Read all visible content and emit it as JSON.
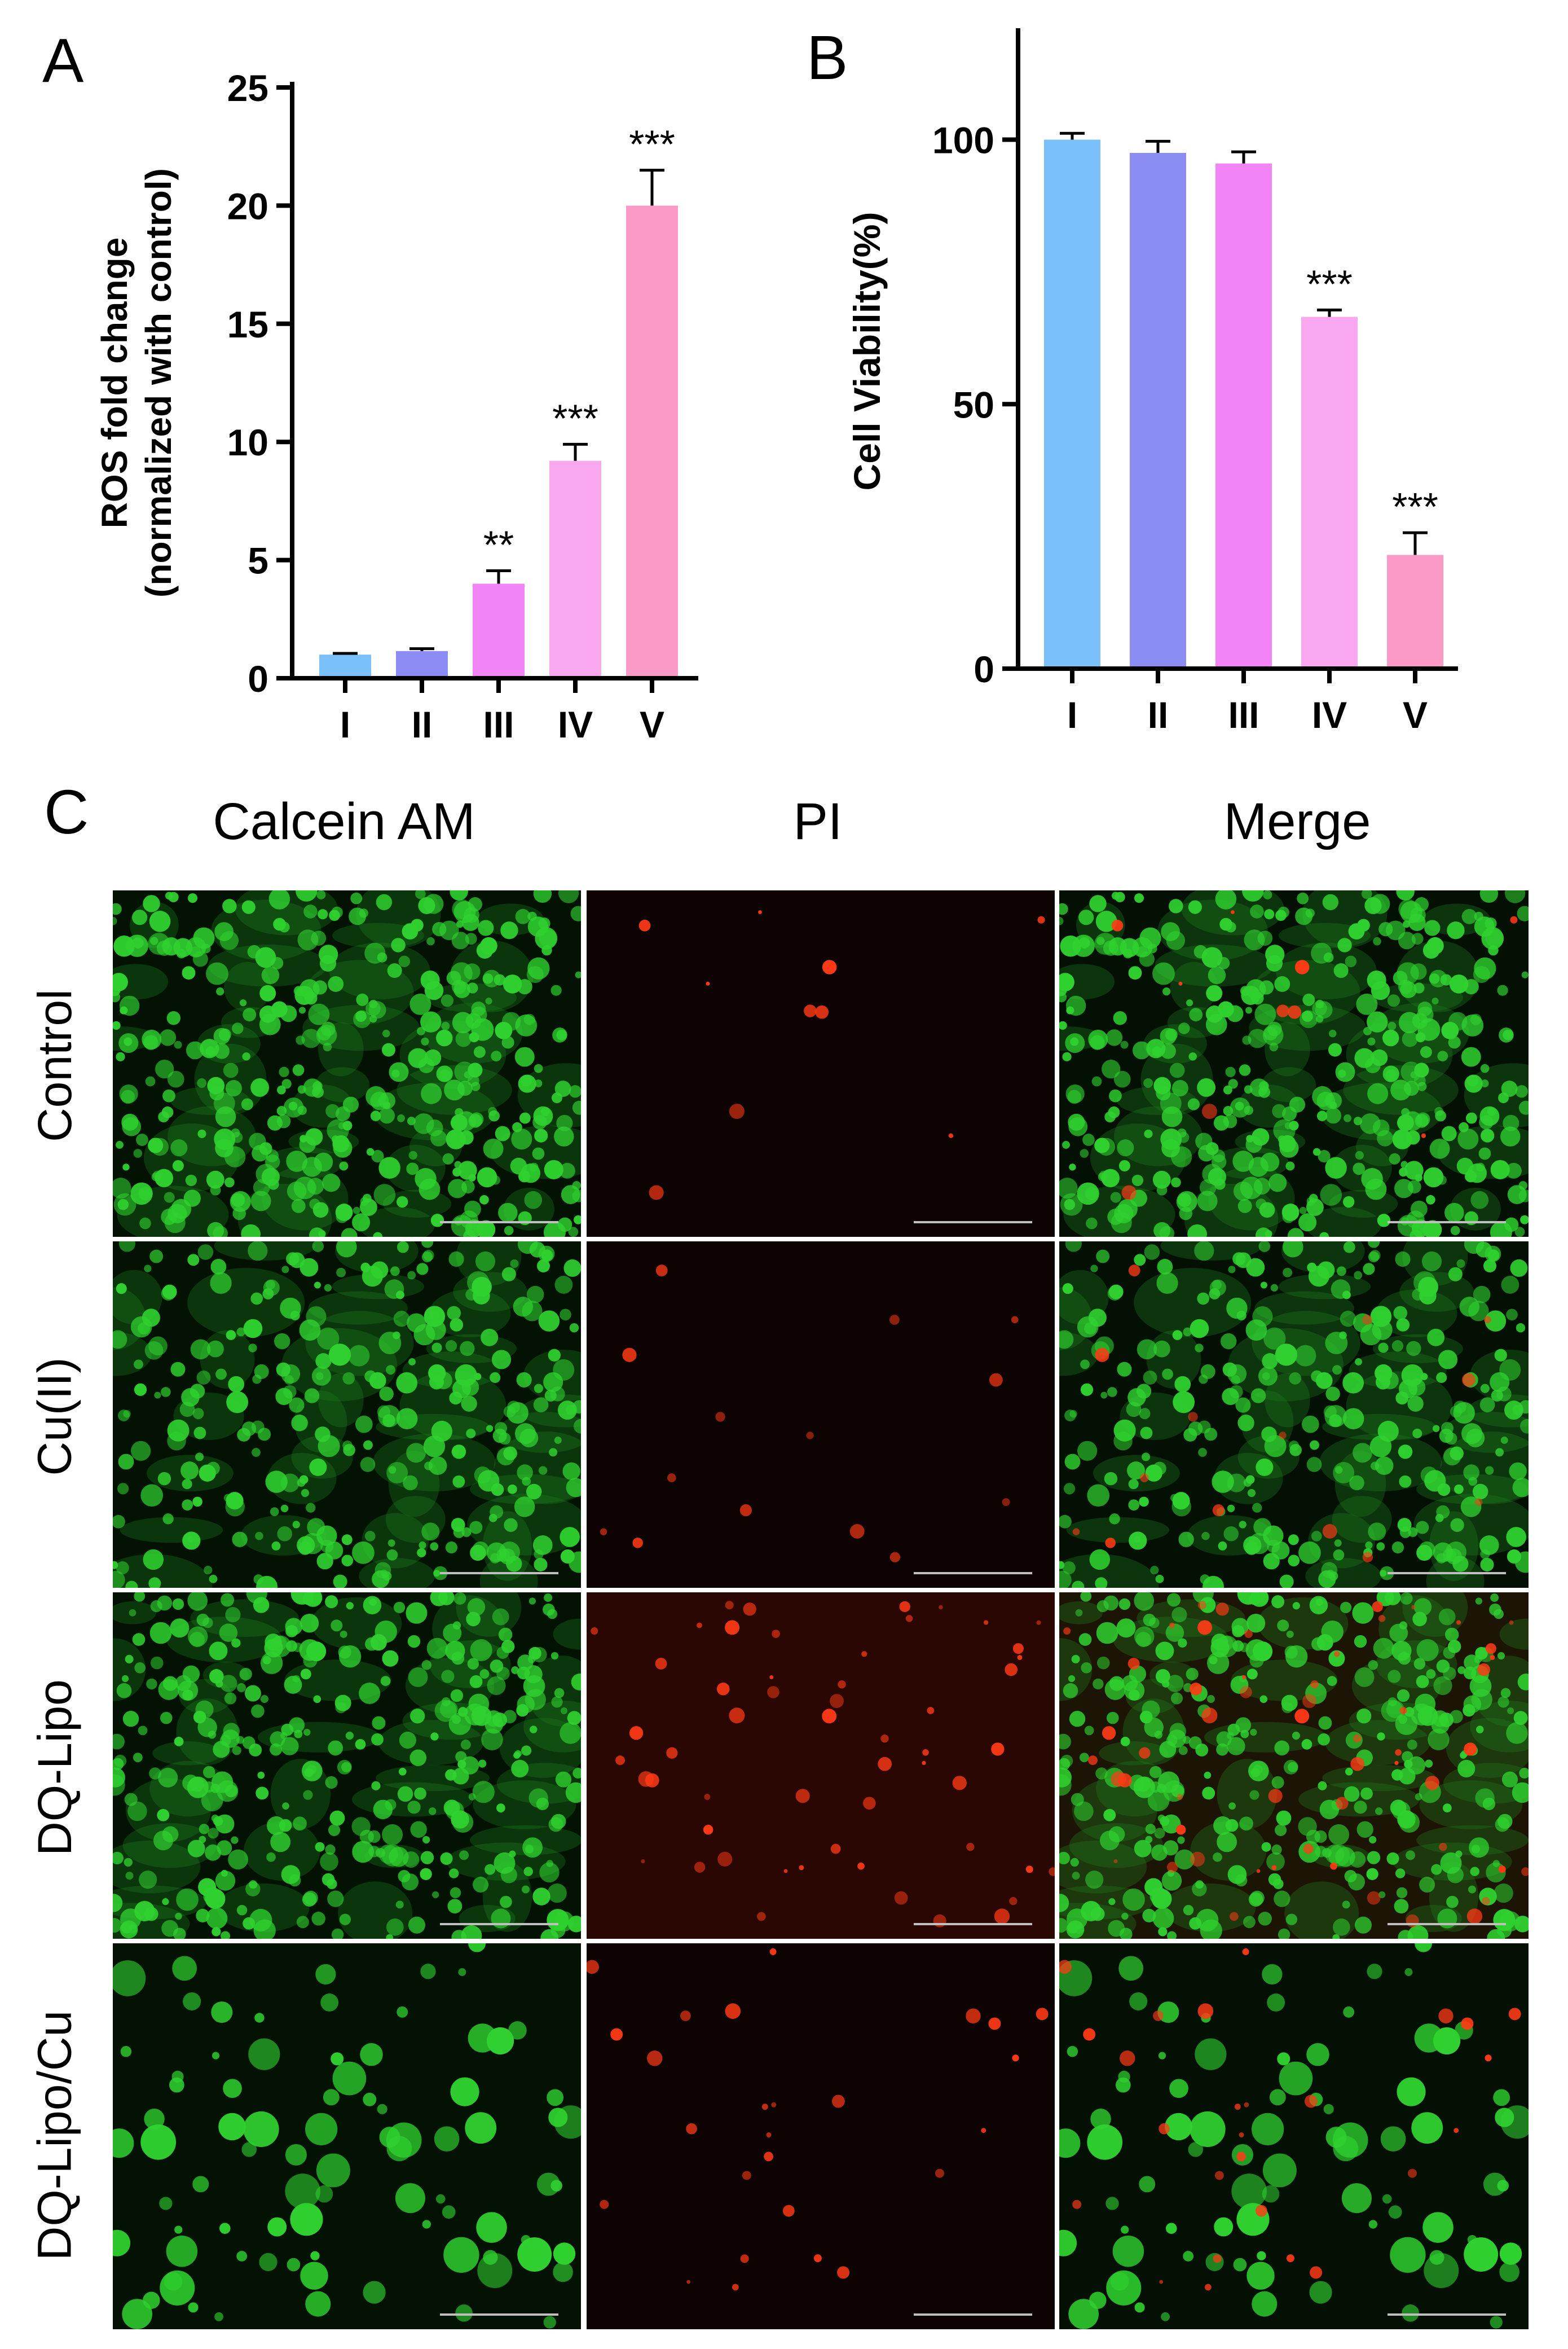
{
  "panels": {
    "A": "A",
    "B": "B",
    "C": "C"
  },
  "chart_data": [
    {
      "type": "bar",
      "panel": "A",
      "categories": [
        "I",
        "II",
        "III",
        "IV",
        "V"
      ],
      "values": [
        1.0,
        1.15,
        4.0,
        9.2,
        20.0
      ],
      "errors": [
        0.05,
        0.1,
        0.55,
        0.7,
        1.5
      ],
      "significance": [
        "",
        "",
        "**",
        "***",
        "***"
      ],
      "colors": [
        "#7ac0fb",
        "#8c8cf5",
        "#f284f6",
        "#f9a8f0",
        "#fb9ac7"
      ],
      "ylabel_line1": "ROS fold change",
      "ylabel_line2": "(normalized with control)",
      "ylim": [
        0,
        25
      ],
      "yticks": [
        "0",
        "5",
        "10",
        "15",
        "20",
        "25"
      ]
    },
    {
      "type": "bar",
      "panel": "B",
      "categories": [
        "I",
        "II",
        "III",
        "IV",
        "V"
      ],
      "values": [
        100,
        97.5,
        95.5,
        66.5,
        21.5
      ],
      "errors": [
        1.2,
        2.2,
        2.2,
        1.3,
        4.2
      ],
      "significance": [
        "",
        "",
        "",
        "***",
        "***"
      ],
      "colors": [
        "#7ac0fb",
        "#8c8cf5",
        "#f284f6",
        "#f9a8f0",
        "#fb9ac7"
      ],
      "ylabel": "Cell Viability(%)",
      "ylim": [
        0,
        120
      ],
      "yticks": [
        "0",
        "50",
        "100"
      ]
    }
  ],
  "micrographs": {
    "columns": [
      "Calcein AM",
      "PI",
      "Merge"
    ],
    "rows": [
      "Control",
      "Cu(II)",
      "DQ-Lipo",
      "DQ-Lipo/Cu"
    ],
    "live_color": "#2fd12f",
    "dead_color": "#ff3a16",
    "live_density": [
      0.95,
      0.7,
      0.85,
      0.2
    ],
    "dead_density": [
      0.08,
      0.12,
      0.45,
      0.22
    ]
  }
}
